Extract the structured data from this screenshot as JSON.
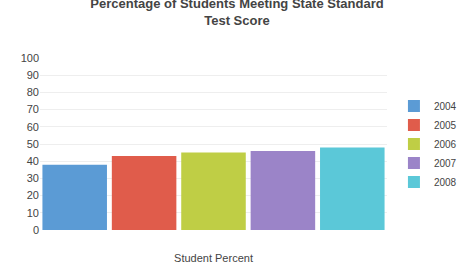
{
  "chart_data": {
    "type": "bar",
    "title": "Percentage of Students Meeting State Standard\nTest Score",
    "xlabel": "Student Percent",
    "categories": [
      "2004",
      "2005",
      "2006",
      "2007",
      "2008"
    ],
    "values": [
      38,
      43,
      45,
      46,
      48
    ],
    "colors": [
      "#5B9BD5",
      "#E05C4B",
      "#BFCE45",
      "#9B84C8",
      "#5BC8D8"
    ],
    "ylim": [
      0,
      100
    ],
    "yticks": [
      0,
      10,
      20,
      30,
      40,
      50,
      60,
      70,
      80,
      90,
      100
    ],
    "grid": true,
    "legend": "right",
    "tick_labels": "y"
  }
}
